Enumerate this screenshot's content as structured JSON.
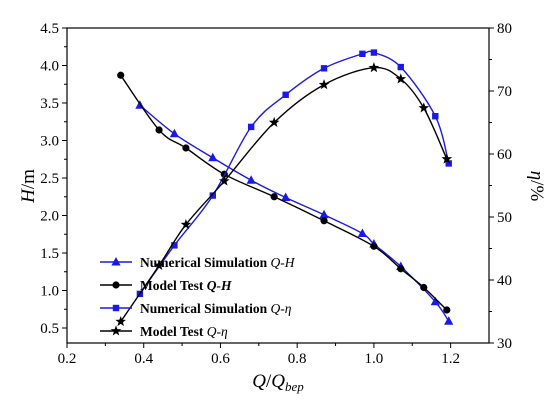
{
  "chart_data": {
    "type": "line",
    "xlabel": {
      "main": "Q",
      "slash": "/",
      "main2": "Q",
      "sub": "bep"
    },
    "ylabel_left": {
      "main": "H",
      "unit": "/m"
    },
    "ylabel_right": {
      "main": "η",
      "unit": "/%"
    },
    "xlim": [
      0.2,
      1.3
    ],
    "ylim_left": [
      0.3,
      4.5
    ],
    "ylim_right": [
      30,
      80
    ],
    "xticks": [
      "0.2",
      "0.4",
      "0.6",
      "0.8",
      "1.0",
      "1.2"
    ],
    "yticks_left": [
      "0.5",
      "1.0",
      "1.5",
      "2.0",
      "2.5",
      "3.0",
      "3.5",
      "4.0",
      "4.5"
    ],
    "yticks_right": [
      "30",
      "40",
      "50",
      "60",
      "70",
      "80"
    ],
    "legend_position": "bottom-left",
    "series": [
      {
        "name": "Numerical Simulation Q-H",
        "legend": {
          "prefix": "Numerical Simulation ",
          "suffix": "Q-H",
          "bold_suffix": false
        },
        "axis": "left",
        "color": "#1a1ae6",
        "marker": "triangle",
        "x": [
          0.39,
          0.48,
          0.58,
          0.68,
          0.77,
          0.87,
          0.97,
          1.0,
          1.07,
          1.16,
          1.195
        ],
        "y": [
          3.47,
          3.09,
          2.77,
          2.47,
          2.24,
          2.01,
          1.76,
          1.62,
          1.32,
          0.85,
          0.59
        ]
      },
      {
        "name": "Model Test Q-H",
        "legend": {
          "prefix": "Model Test  ",
          "suffix": "Q-H",
          "bold_suffix": true
        },
        "axis": "left",
        "color": "#000000",
        "marker": "circle",
        "x": [
          0.34,
          0.44,
          0.51,
          0.61,
          0.74,
          0.87,
          1.0,
          1.07,
          1.13,
          1.19
        ],
        "y": [
          3.87,
          3.14,
          2.9,
          2.55,
          2.25,
          1.93,
          1.59,
          1.29,
          1.04,
          0.74
        ]
      },
      {
        "name": "Numerical Simulation Q-η",
        "legend": {
          "prefix": "Numerical Simulation ",
          "suffix": "Q-η",
          "bold_suffix": false
        },
        "axis": "right",
        "color": "#1a1ae6",
        "marker": "square",
        "x": [
          0.39,
          0.48,
          0.58,
          0.68,
          0.77,
          0.87,
          0.97,
          1.0,
          1.07,
          1.16,
          1.195
        ],
        "y": [
          37.8,
          45.5,
          53.4,
          64.3,
          69.4,
          73.6,
          75.9,
          76.1,
          73.8,
          66.0,
          58.5
        ]
      },
      {
        "name": "Model Test Q-η",
        "legend": {
          "prefix": "Model Test ",
          "suffix": "Q-η",
          "bold_suffix": false
        },
        "axis": "right",
        "color": "#000000",
        "marker": "star",
        "x": [
          0.34,
          0.44,
          0.51,
          0.61,
          0.74,
          0.87,
          1.0,
          1.07,
          1.13,
          1.19
        ],
        "y": [
          33.4,
          42.3,
          48.8,
          55.7,
          65.0,
          71.0,
          73.7,
          71.9,
          67.3,
          59.2
        ]
      }
    ]
  }
}
